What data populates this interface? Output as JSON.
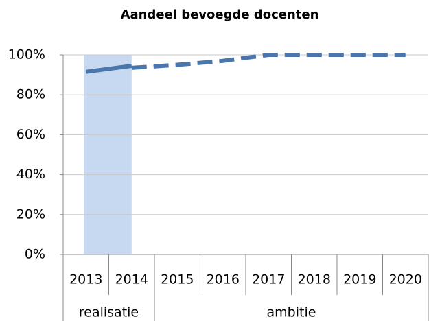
{
  "chart_data": {
    "type": "line",
    "title": "Aandeel bevoegde docenten",
    "categories": [
      "2013",
      "2014",
      "2015",
      "2016",
      "2017",
      "2018",
      "2019",
      "2020"
    ],
    "groups": [
      {
        "label": "realisatie",
        "span": 2
      },
      {
        "label": "ambitie",
        "span": 6
      }
    ],
    "series": [
      {
        "style": "solid",
        "color": "#4a76ab",
        "values": [
          91.5,
          94.5,
          null,
          null,
          null,
          null,
          null,
          null
        ]
      },
      {
        "style": "dashed",
        "color": "#4a76ab",
        "values": [
          null,
          93.5,
          95,
          97,
          100,
          100,
          100,
          100
        ]
      }
    ],
    "highlight": {
      "from": 0,
      "to": 1,
      "value": 100,
      "color": "#c6d9f1"
    },
    "ylim": [
      0,
      100
    ],
    "yticks": [
      {
        "value": 0,
        "label": "0%"
      },
      {
        "value": 20,
        "label": "20%"
      },
      {
        "value": 40,
        "label": "40%"
      },
      {
        "value": 60,
        "label": "60%"
      },
      {
        "value": 80,
        "label": "80%"
      },
      {
        "value": 100,
        "label": "100%"
      }
    ],
    "grid": true
  }
}
